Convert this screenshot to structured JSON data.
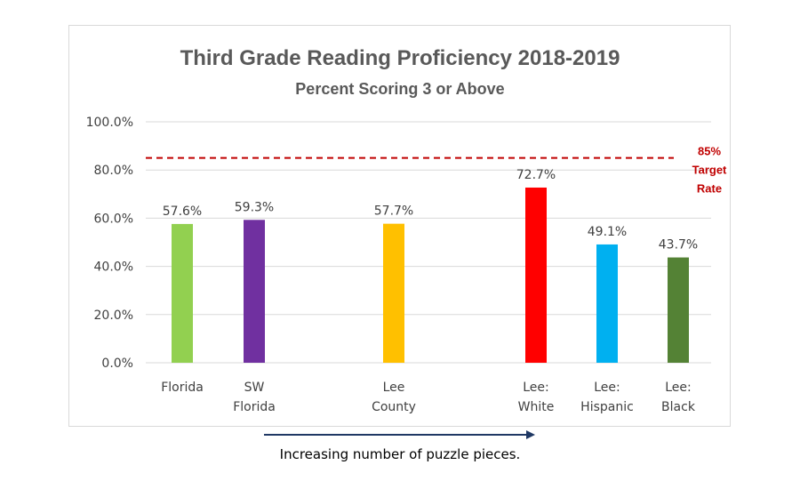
{
  "chart_data": {
    "type": "bar",
    "title": "Third Grade Reading Proficiency 2018-2019",
    "subtitle": "Percent Scoring 3 or Above",
    "categories": [
      [
        "Florida"
      ],
      [
        "SW",
        "Florida"
      ],
      [
        "Lee",
        "County"
      ],
      [
        "Lee:",
        "White"
      ],
      [
        "Lee:",
        "Hispanic"
      ],
      [
        "Lee:",
        "Black"
      ]
    ],
    "values": [
      57.6,
      59.3,
      57.7,
      72.7,
      49.1,
      43.7
    ],
    "data_labels": [
      "57.6%",
      "59.3%",
      "57.7%",
      "72.7%",
      "49.1%",
      "43.7%"
    ],
    "colors": [
      "#92d050",
      "#7030a0",
      "#ffc000",
      "#ff0000",
      "#00b0f0",
      "#548235"
    ],
    "ylim": [
      0,
      100
    ],
    "yticks": [
      0,
      20,
      40,
      60,
      80,
      100
    ],
    "ytick_labels": [
      "0.0%",
      "20.0%",
      "40.0%",
      "60.0%",
      "80.0%",
      "100.0%"
    ],
    "grid": true,
    "legend": "none",
    "reference_line": {
      "value": 85,
      "style": "dashed",
      "color": "#c00000",
      "label": [
        "85%",
        "Target",
        "Rate"
      ]
    }
  },
  "caption": {
    "text": "Increasing number of puzzle pieces.",
    "arrow_color": "#1f3864"
  }
}
